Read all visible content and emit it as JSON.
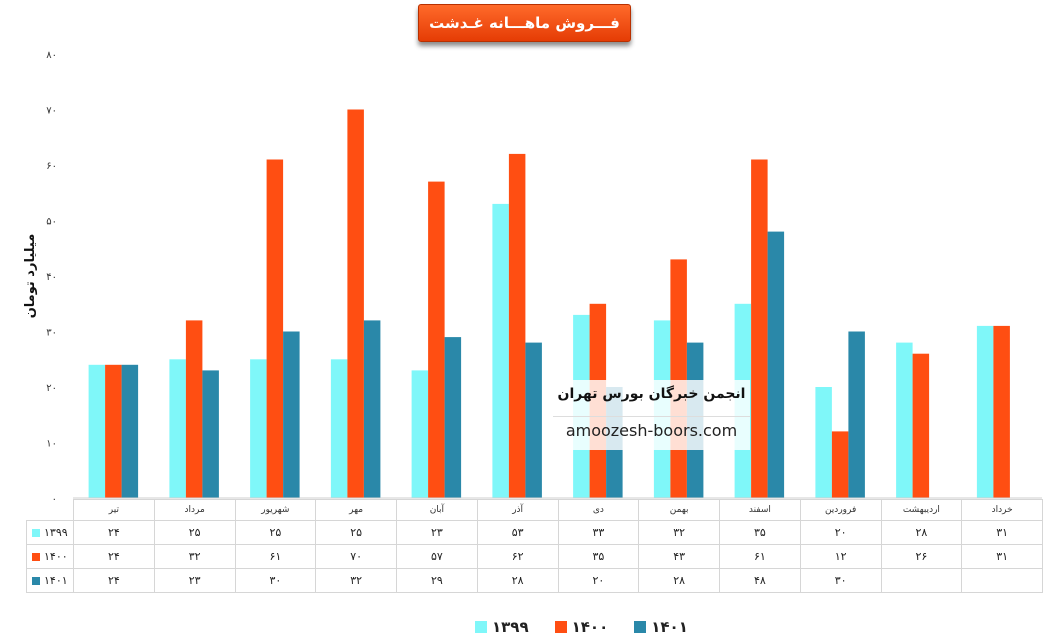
{
  "chart_data": {
    "type": "bar",
    "title": "فـــروش ماهـــانه غـدشت",
    "ylabel": "میلیارد تومان",
    "ylim": [
      0,
      80
    ],
    "yticks": [
      {
        "v": 0,
        "label": "۰"
      },
      {
        "v": 10,
        "label": "۱۰"
      },
      {
        "v": 20,
        "label": "۲۰"
      },
      {
        "v": 30,
        "label": "۳۰"
      },
      {
        "v": 40,
        "label": "۴۰"
      },
      {
        "v": 50,
        "label": "۵۰"
      },
      {
        "v": 60,
        "label": "۶۰"
      },
      {
        "v": 70,
        "label": "۷۰"
      },
      {
        "v": 80,
        "label": "۸۰"
      }
    ],
    "categories": [
      "تیر",
      "مرداد",
      "شهریور",
      "مهر",
      "آبان",
      "آذر",
      "دی",
      "بهمن",
      "اسفند",
      "فروردین",
      "اردیبهشت",
      "خرداد"
    ],
    "series": [
      {
        "name": "۱۳۹۹",
        "color": "#7ff7f9",
        "values": [
          24,
          25,
          25,
          25,
          23,
          53,
          33,
          32,
          35,
          20,
          28,
          31
        ],
        "labels": [
          "۲۴",
          "۲۵",
          "۲۵",
          "۲۵",
          "۲۳",
          "۵۳",
          "۳۳",
          "۳۲",
          "۳۵",
          "۲۰",
          "۲۸",
          "۳۱"
        ]
      },
      {
        "name": "۱۴۰۰",
        "color": "#ff4e12",
        "values": [
          24,
          32,
          61,
          70,
          57,
          62,
          35,
          43,
          61,
          12,
          26,
          31
        ],
        "labels": [
          "۲۴",
          "۳۲",
          "۶۱",
          "۷۰",
          "۵۷",
          "۶۲",
          "۳۵",
          "۴۳",
          "۶۱",
          "۱۲",
          "۲۶",
          "۳۱"
        ]
      },
      {
        "name": "۱۴۰۱",
        "color": "#2a88a9",
        "values": [
          24,
          23,
          30,
          32,
          29,
          28,
          20,
          28,
          48,
          30,
          null,
          null
        ],
        "labels": [
          "۲۴",
          "۲۳",
          "۳۰",
          "۳۲",
          "۲۹",
          "۲۸",
          "۲۰",
          "۲۸",
          "۴۸",
          "۳۰",
          "",
          ""
        ]
      }
    ],
    "grid": false,
    "legend": "bottom",
    "data_table": true
  },
  "watermark": {
    "title": "انجمن خبرگان بورس تهران",
    "url": "amoozesh-boors.com"
  }
}
